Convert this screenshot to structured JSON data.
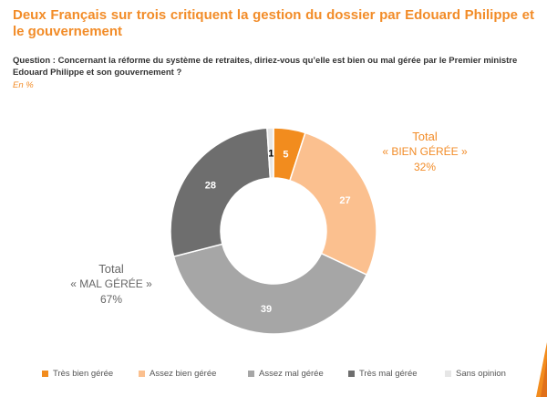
{
  "title": "Deux Français sur trois critiquent la gestion du dossier par Edouard Philippe et le gouvernement",
  "question": "Question : Concernant la réforme du système de retraites, diriez-vous qu’elle est bien ou mal gérée par le Premier ministre Edouard Philippe et son gouvernement ?",
  "unit": "En %",
  "callouts": {
    "bien": {
      "line1": "Total",
      "line2": "« BIEN GÉRÉE »",
      "line3": "32%"
    },
    "mal": {
      "line1": "Total",
      "line2": "« MAL GÉRÉE »",
      "line3": "67%"
    }
  },
  "chart_data": {
    "type": "pie",
    "categories": [
      "Très bien gérée",
      "Assez bien gérée",
      "Assez mal gérée",
      "Très mal gérée",
      "Sans opinion"
    ],
    "values": [
      5,
      27,
      39,
      28,
      1
    ],
    "colors": [
      "#f28c1e",
      "#fbc08f",
      "#a6a6a6",
      "#6e6e6e",
      "#e6e6e6"
    ],
    "label_colors": [
      "#ffffff",
      "#ffffff",
      "#ffffff",
      "#ffffff",
      "#000000"
    ],
    "unit": "%",
    "legend_position": "bottom"
  }
}
